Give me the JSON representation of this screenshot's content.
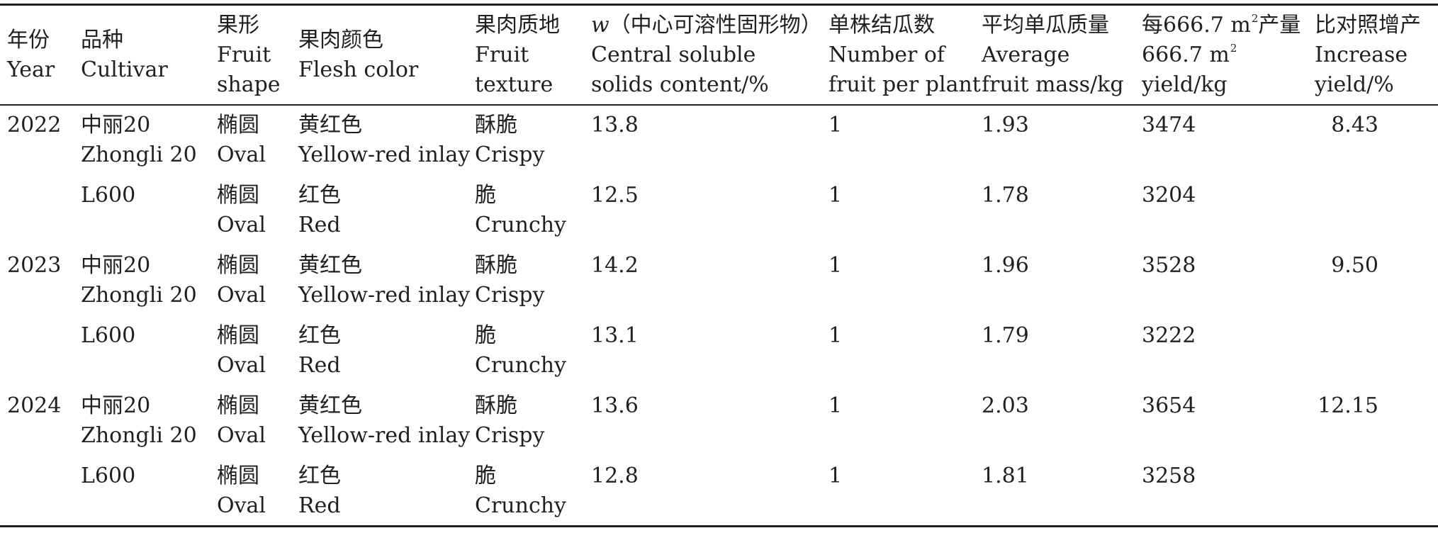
{
  "header": {
    "year": {
      "cn": "年份",
      "en": "Year"
    },
    "cultivar": {
      "cn": "品种",
      "en": "Cultivar"
    },
    "shape": {
      "cn": "果形",
      "en1": "Fruit",
      "en2": "shape"
    },
    "flesh_color": {
      "cn": "果肉颜色",
      "en": "Flesh color"
    },
    "texture": {
      "cn": "果肉质地",
      "en1": "Fruit",
      "en2": "texture"
    },
    "solids": {
      "symbol": "w",
      "cn": "（中心可溶性固形物）",
      "en1": "Central soluble",
      "en2": "solids content/%"
    },
    "fruit_per_plant": {
      "cn": "单株结瓜数",
      "en1": "Number of",
      "en2": "fruit per plant"
    },
    "fruit_mass": {
      "cn": "平均单瓜质量",
      "en1": "Average",
      "en2": "fruit mass/kg"
    },
    "yield": {
      "cn_pre": "每666.7 m",
      "sup": "2",
      "cn_post": "产量",
      "en1_pre": "666.7 m",
      "en1_sup": "2",
      "en2": "yield/kg"
    },
    "increase": {
      "cn": "比对照增产",
      "en1": "Increase",
      "en2": "yield/%"
    }
  },
  "rows": [
    {
      "year": "2022",
      "cultivar_cn": "中丽20",
      "cultivar_en": "Zhongli 20",
      "shape_cn": "椭圆",
      "shape_en": "Oval",
      "color_cn": "黄红色",
      "color_en": "Yellow-red inlay",
      "texture_cn": "酥脆",
      "texture_en": "Crispy",
      "solids": "13.8",
      "fruit_per_plant": "1",
      "mass": "1.93",
      "yield": "3474",
      "increase": "8.43"
    },
    {
      "year": "",
      "cultivar_cn": "L600",
      "cultivar_en": "",
      "shape_cn": "椭圆",
      "shape_en": "Oval",
      "color_cn": "红色",
      "color_en": "Red",
      "texture_cn": "脆",
      "texture_en": "Crunchy",
      "solids": "12.5",
      "fruit_per_plant": "1",
      "mass": "1.78",
      "yield": "3204",
      "increase": ""
    },
    {
      "year": "2023",
      "cultivar_cn": "中丽20",
      "cultivar_en": "Zhongli 20",
      "shape_cn": "椭圆",
      "shape_en": "Oval",
      "color_cn": "黄红色",
      "color_en": "Yellow-red inlay",
      "texture_cn": "酥脆",
      "texture_en": "Crispy",
      "solids": "14.2",
      "fruit_per_plant": "1",
      "mass": "1.96",
      "yield": "3528",
      "increase": "9.50"
    },
    {
      "year": "",
      "cultivar_cn": "L600",
      "cultivar_en": "",
      "shape_cn": "椭圆",
      "shape_en": "Oval",
      "color_cn": "红色",
      "color_en": "Red",
      "texture_cn": "脆",
      "texture_en": "Crunchy",
      "solids": "13.1",
      "fruit_per_plant": "1",
      "mass": "1.79",
      "yield": "3222",
      "increase": ""
    },
    {
      "year": "2024",
      "cultivar_cn": "中丽20",
      "cultivar_en": "Zhongli 20",
      "shape_cn": "椭圆",
      "shape_en": "Oval",
      "color_cn": "黄红色",
      "color_en": "Yellow-red inlay",
      "texture_cn": "酥脆",
      "texture_en": "Crispy",
      "solids": "13.6",
      "fruit_per_plant": "1",
      "mass": "2.03",
      "yield": "3654",
      "increase": "12.15"
    },
    {
      "year": "",
      "cultivar_cn": "L600",
      "cultivar_en": "",
      "shape_cn": "椭圆",
      "shape_en": "Oval",
      "color_cn": "红色",
      "color_en": "Red",
      "texture_cn": "脆",
      "texture_en": "Crunchy",
      "solids": "12.8",
      "fruit_per_plant": "1",
      "mass": "1.81",
      "yield": "3258",
      "increase": ""
    }
  ]
}
